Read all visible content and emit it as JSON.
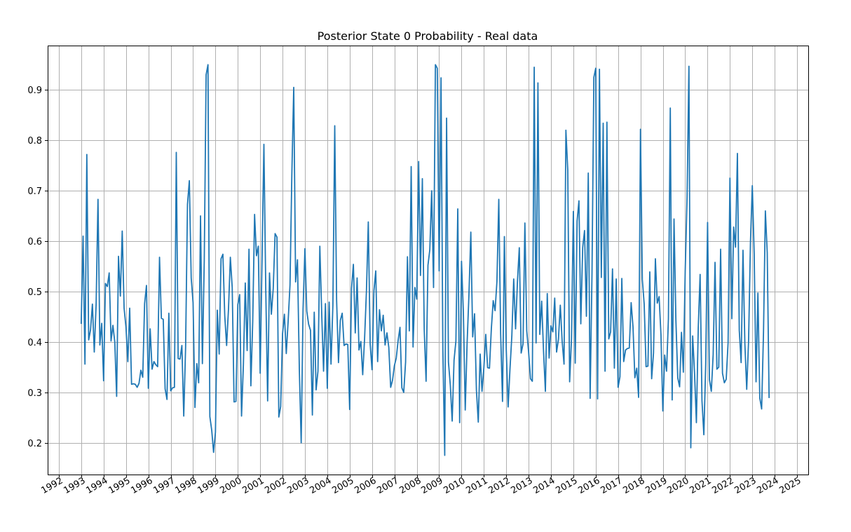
{
  "chart_data": {
    "type": "line",
    "title": "Posterior State 0 Probability - Real data",
    "xlabel": "",
    "ylabel": "",
    "x_axis": "date",
    "xlim": [
      "1991-07-01",
      "2025-07-01"
    ],
    "ylim": [
      0.137,
      0.988
    ],
    "grid": true,
    "legend": "none",
    "color": "#1f77b4",
    "x_ticks": [
      "1992",
      "1993",
      "1994",
      "1995",
      "1996",
      "1997",
      "1998",
      "1999",
      "2000",
      "2001",
      "2002",
      "2003",
      "2004",
      "2005",
      "2006",
      "2007",
      "2008",
      "2009",
      "2010",
      "2011",
      "2012",
      "2013",
      "2014",
      "2015",
      "2016",
      "2017",
      "2018",
      "2019",
      "2020",
      "2021",
      "2022",
      "2023",
      "2024",
      "2025"
    ],
    "y_ticks": [
      0.2,
      0.3,
      0.4,
      0.5,
      0.6,
      0.7,
      0.8,
      0.9
    ],
    "series": [
      {
        "x_start": "1993-01",
        "x_end": "2023-11",
        "frequency": "monthly",
        "values": [
          0.437,
          0.61,
          0.356,
          0.772,
          0.404,
          0.424,
          0.475,
          0.38,
          0.475,
          0.683,
          0.394,
          0.437,
          0.323,
          0.516,
          0.51,
          0.537,
          0.402,
          0.433,
          0.4,
          0.292,
          0.57,
          0.491,
          0.62,
          0.467,
          0.43,
          0.361,
          0.467,
          0.316,
          0.317,
          0.316,
          0.31,
          0.318,
          0.344,
          0.33,
          0.476,
          0.512,
          0.308,
          0.426,
          0.346,
          0.361,
          0.355,
          0.351,
          0.568,
          0.447,
          0.445,
          0.307,
          0.286,
          0.457,
          0.303,
          0.309,
          0.31,
          0.776,
          0.367,
          0.366,
          0.393,
          0.253,
          0.39,
          0.673,
          0.72,
          0.527,
          0.478,
          0.27,
          0.357,
          0.319,
          0.65,
          0.357,
          0.56,
          0.93,
          0.95,
          0.252,
          0.225,
          0.181,
          0.221,
          0.463,
          0.376,
          0.565,
          0.574,
          0.452,
          0.393,
          0.465,
          0.568,
          0.508,
          0.281,
          0.282,
          0.474,
          0.494,
          0.253,
          0.355,
          0.517,
          0.383,
          0.584,
          0.313,
          0.44,
          0.653,
          0.571,
          0.59,
          0.338,
          0.565,
          0.792,
          0.503,
          0.283,
          0.537,
          0.455,
          0.506,
          0.615,
          0.608,
          0.251,
          0.272,
          0.416,
          0.455,
          0.377,
          0.441,
          0.513,
          0.735,
          0.905,
          0.519,
          0.563,
          0.346,
          0.2,
          0.465,
          0.585,
          0.461,
          0.435,
          0.423,
          0.255,
          0.459,
          0.305,
          0.342,
          0.59,
          0.457,
          0.342,
          0.476,
          0.308,
          0.479,
          0.356,
          0.473,
          0.829,
          0.483,
          0.359,
          0.443,
          0.457,
          0.393,
          0.396,
          0.395,
          0.266,
          0.506,
          0.554,
          0.418,
          0.527,
          0.384,
          0.401,
          0.335,
          0.406,
          0.501,
          0.638,
          0.396,
          0.345,
          0.501,
          0.541,
          0.361,
          0.464,
          0.422,
          0.453,
          0.394,
          0.418,
          0.389,
          0.31,
          0.324,
          0.353,
          0.368,
          0.403,
          0.429,
          0.309,
          0.3,
          0.36,
          0.569,
          0.422,
          0.748,
          0.39,
          0.508,
          0.485,
          0.758,
          0.532,
          0.724,
          0.425,
          0.322,
          0.552,
          0.583,
          0.7,
          0.508,
          0.95,
          0.943,
          0.541,
          0.924,
          0.384,
          0.175,
          0.844,
          0.36,
          0.314,
          0.243,
          0.364,
          0.402,
          0.664,
          0.24,
          0.56,
          0.459,
          0.265,
          0.397,
          0.495,
          0.618,
          0.41,
          0.456,
          0.304,
          0.241,
          0.376,
          0.302,
          0.349,
          0.415,
          0.349,
          0.348,
          0.426,
          0.482,
          0.462,
          0.52,
          0.683,
          0.416,
          0.282,
          0.609,
          0.386,
          0.271,
          0.346,
          0.412,
          0.525,
          0.426,
          0.519,
          0.587,
          0.378,
          0.396,
          0.636,
          0.422,
          0.38,
          0.327,
          0.322,
          0.945,
          0.398,
          0.914,
          0.415,
          0.481,
          0.382,
          0.302,
          0.496,
          0.368,
          0.432,
          0.42,
          0.487,
          0.38,
          0.405,
          0.473,
          0.401,
          0.356,
          0.82,
          0.741,
          0.321,
          0.406,
          0.659,
          0.358,
          0.64,
          0.68,
          0.436,
          0.587,
          0.621,
          0.451,
          0.735,
          0.288,
          0.536,
          0.925,
          0.943,
          0.287,
          0.941,
          0.528,
          0.834,
          0.342,
          0.836,
          0.406,
          0.42,
          0.545,
          0.348,
          0.525,
          0.31,
          0.331,
          0.526,
          0.361,
          0.384,
          0.387,
          0.388,
          0.478,
          0.43,
          0.329,
          0.348,
          0.29,
          0.822,
          0.524,
          0.475,
          0.351,
          0.352,
          0.539,
          0.327,
          0.378,
          0.565,
          0.477,
          0.49,
          0.414,
          0.263,
          0.374,
          0.342,
          0.446,
          0.864,
          0.285,
          0.644,
          0.444,
          0.329,
          0.311,
          0.419,
          0.34,
          0.541,
          0.686,
          0.947,
          0.19,
          0.412,
          0.339,
          0.24,
          0.428,
          0.534,
          0.283,
          0.216,
          0.356,
          0.637,
          0.325,
          0.302,
          0.375,
          0.558,
          0.346,
          0.35,
          0.584,
          0.338,
          0.319,
          0.326,
          0.398,
          0.725,
          0.446,
          0.628,
          0.588,
          0.774,
          0.423,
          0.359,
          0.582,
          0.397,
          0.306,
          0.402,
          0.597,
          0.71,
          0.575,
          0.321,
          0.497,
          0.289,
          0.267,
          0.419,
          0.66,
          0.577,
          0.29
        ]
      }
    ]
  }
}
